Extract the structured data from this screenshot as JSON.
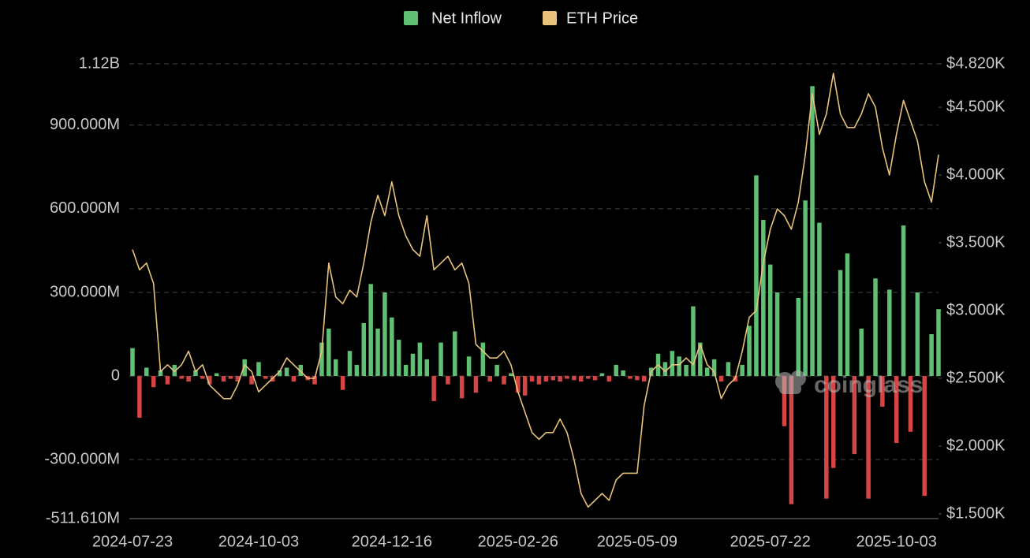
{
  "chart_data": {
    "type": "combo",
    "watermark": "coinglass",
    "categories": [
      "2024-07-23",
      null,
      null,
      null,
      null,
      null,
      null,
      null,
      null,
      null,
      null,
      null,
      null,
      null,
      null,
      null,
      null,
      null,
      "2024-10-03",
      null,
      null,
      null,
      null,
      null,
      null,
      null,
      null,
      null,
      null,
      null,
      null,
      null,
      null,
      null,
      null,
      null,
      null,
      "2024-12-16",
      null,
      null,
      null,
      null,
      null,
      null,
      null,
      null,
      null,
      null,
      null,
      null,
      null,
      null,
      null,
      null,
      null,
      "2025-02-26",
      null,
      null,
      null,
      null,
      null,
      null,
      null,
      null,
      null,
      null,
      null,
      null,
      null,
      null,
      null,
      null,
      "2025-05-09",
      null,
      null,
      null,
      null,
      null,
      null,
      null,
      null,
      null,
      null,
      null,
      null,
      null,
      null,
      null,
      null,
      null,
      null,
      "2025-07-22",
      null,
      null,
      null,
      null,
      null,
      null,
      null,
      null,
      null,
      null,
      null,
      null,
      null,
      null,
      null,
      null,
      null,
      "2025-10-03",
      null,
      null,
      null,
      null,
      null,
      null
    ],
    "series": [
      {
        "name": "Net Inflow",
        "type": "bar",
        "color": "#5fbf73",
        "negative_color": "#d64545",
        "values": [
          100000000.0,
          -150000000.0,
          30000000.0,
          -40000000.0,
          20000000.0,
          -30000000.0,
          40000000.0,
          -10000000.0,
          -20000000.0,
          20000000.0,
          -10000000.0,
          -30000000.0,
          10000000.0,
          -20000000.0,
          -10000000.0,
          -20000000.0,
          60000000.0,
          -30000000.0,
          50000000.0,
          -10000000.0,
          -20000000.0,
          20000000.0,
          30000000.0,
          -20000000.0,
          40000000.0,
          -15000000.0,
          -30000000.0,
          120000000.0,
          170000000.0,
          60000000.0,
          -50000000.0,
          90000000.0,
          40000000.0,
          190000000.0,
          330000000.0,
          170000000.0,
          300000000.0,
          210000000.0,
          130000000.0,
          40000000.0,
          80000000.0,
          120000000.0,
          60000000.0,
          -90000000.0,
          120000000.0,
          -30000000.0,
          160000000.0,
          -80000000.0,
          70000000.0,
          -60000000.0,
          120000000.0,
          -20000000.0,
          40000000.0,
          -30000000.0,
          10000000.0,
          -60000000.0,
          -70000000.0,
          -20000000.0,
          -30000000.0,
          -20000000.0,
          -15000000.0,
          -20000000.0,
          -10000000.0,
          -15000000.0,
          -20000000.0,
          -10000000.0,
          -15000000.0,
          10000000.0,
          -20000000.0,
          40000000.0,
          20000000.0,
          -10000000.0,
          -15000000.0,
          -20000000.0,
          30000000.0,
          80000000.0,
          50000000.0,
          90000000.0,
          70000000.0,
          40000000.0,
          250000000.0,
          120000000.0,
          30000000.0,
          60000000.0,
          -20000000.0,
          50000000.0,
          -20000000.0,
          40000000.0,
          180000000.0,
          720000000.0,
          560000000.0,
          400000000.0,
          300000000.0,
          -180000000.0,
          -460000000.0,
          280000000.0,
          630000000.0,
          1040000000.0,
          550000000.0,
          -440000000.0,
          -330000000.0,
          380000000.0,
          440000000.0,
          -280000000.0,
          170000000.0,
          -440000000.0,
          350000000.0,
          -110000000.0,
          310000000.0,
          -240000000.0,
          540000000.0,
          -200000000.0,
          300000000.0,
          -430000000.0,
          150000000.0,
          240000000.0
        ]
      },
      {
        "name": "ETH Price",
        "type": "line",
        "axis": "y2",
        "color": "#e8c27a",
        "values": [
          3450,
          3300,
          3350,
          3200,
          2550,
          2600,
          2550,
          2600,
          2700,
          2550,
          2600,
          2450,
          2400,
          2350,
          2350,
          2450,
          2600,
          2550,
          2400,
          2450,
          2500,
          2550,
          2650,
          2600,
          2550,
          2500,
          2500,
          2700,
          3350,
          3100,
          3050,
          3150,
          3100,
          3350,
          3650,
          3850,
          3700,
          3950,
          3700,
          3550,
          3450,
          3400,
          3700,
          3300,
          3350,
          3400,
          3300,
          3350,
          3200,
          2750,
          2700,
          2650,
          2650,
          2700,
          2600,
          2400,
          2250,
          2100,
          2050,
          2100,
          2100,
          2200,
          2100,
          1900,
          1650,
          1550,
          1600,
          1650,
          1600,
          1750,
          1800,
          1800,
          1800,
          2300,
          2550,
          2600,
          2550,
          2600,
          2600,
          2650,
          2600,
          2750,
          2600,
          2550,
          2350,
          2450,
          2500,
          2700,
          2950,
          3000,
          3350,
          3600,
          3750,
          3700,
          3600,
          3800,
          4150,
          4600,
          4300,
          4450,
          4750,
          4450,
          4350,
          4350,
          4450,
          4600,
          4500,
          4200,
          4000,
          4300,
          4550,
          4400,
          4250,
          3950,
          3800,
          4150
        ]
      }
    ],
    "ylim": [
      -511610000,
      1120000000
    ],
    "yticks": [
      {
        "value": -511610000,
        "label": "-511.610M"
      },
      {
        "value": -300000000,
        "label": "-300.000M"
      },
      0,
      {
        "value": 300000000,
        "label": "300.000M"
      },
      {
        "value": 600000000,
        "label": "600.000M"
      },
      {
        "value": 900000000,
        "label": "900.000M"
      },
      {
        "value": 1120000000,
        "label": "1.12B"
      }
    ],
    "y2lim": [
      1500,
      4820
    ],
    "y2ticks": [
      {
        "value": 1500,
        "label": "$1.500K"
      },
      {
        "value": 2000,
        "label": "$2.000K"
      },
      {
        "value": 2500,
        "label": "$2.500K"
      },
      {
        "value": 3000,
        "label": "$3.000K"
      },
      {
        "value": 3500,
        "label": "$3.500K"
      },
      {
        "value": 4000,
        "label": "$4.000K"
      },
      {
        "value": 4500,
        "label": "$4.500K"
      },
      {
        "value": 4820,
        "label": "$4.820K"
      }
    ],
    "grid": true
  }
}
